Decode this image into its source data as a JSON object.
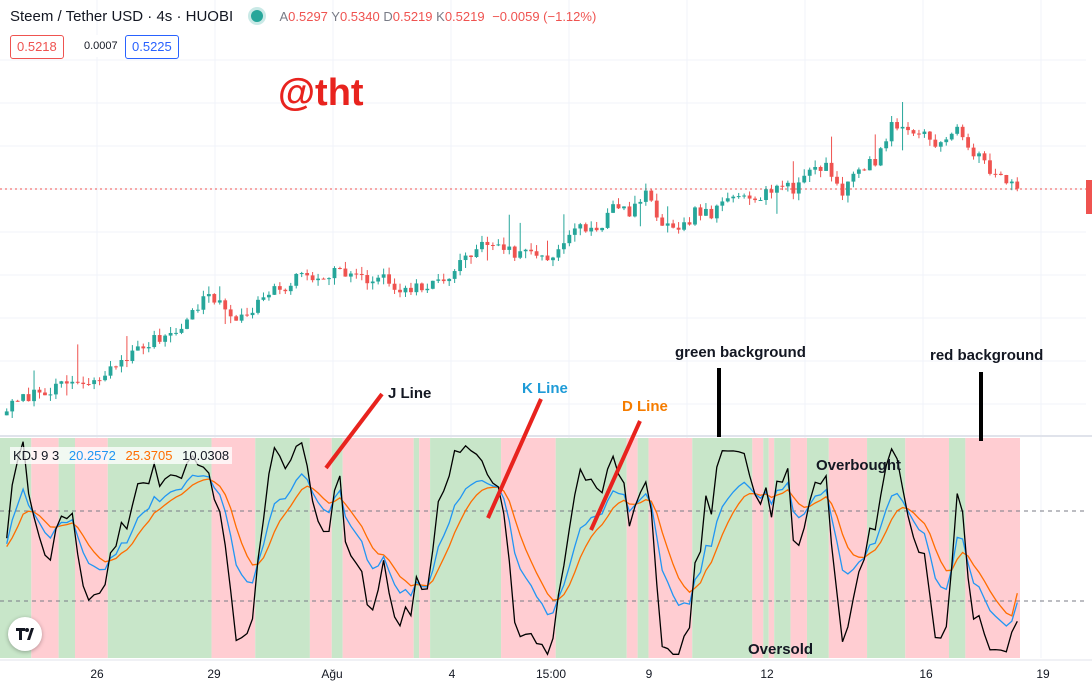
{
  "header": {
    "symbol": "Steem / Tether USD · 4s · HUOBI",
    "o_label": "A",
    "o_val": "0.5297",
    "h_label": "Y",
    "h_val": "0.5340",
    "l_label": "D",
    "l_val": "0.5219",
    "c_label": "K",
    "c_val": "0.5219",
    "change": "−0.0059 (−1.12%)"
  },
  "trade": {
    "sell": "0.5218",
    "spread": "0.0007",
    "buy": "0.5225"
  },
  "watermark": "@tht",
  "kdj_legend": {
    "name": "KDJ 9 3",
    "k": "20.2572",
    "d": "25.3705",
    "j": "10.0308"
  },
  "annotations": {
    "j_line": "J Line",
    "k_line": "K Line",
    "d_line": "D Line",
    "green_bg": "green background",
    "red_bg": "red background",
    "overbought": "Overbought",
    "oversold": "Oversold"
  },
  "colors": {
    "up": "#26a69a",
    "down": "#ef5350",
    "k": "#2196f3",
    "d": "#ff6d00",
    "j": "#000000",
    "bg_green": "#c8e6c9",
    "bg_red": "#ffcdd2",
    "annotation_red": "#e8231e",
    "annotation_blue": "#1e9bd7",
    "annotation_orange": "#f57c00"
  },
  "chart_data": [
    {
      "type": "candlestick",
      "title": "Steem / Tether USD · 4s · HUOBI",
      "x_ticks": [
        "26",
        "29",
        "Ağu",
        "4",
        "15:00",
        "9",
        "12",
        "16",
        "19"
      ],
      "ylim": [
        0.46,
        0.56
      ],
      "last_price": 0.5219,
      "close_path": [
        [
          0,
          0.4655
        ],
        [
          3,
          0.468
        ],
        [
          6,
          0.47
        ],
        [
          9,
          0.4705
        ],
        [
          12,
          0.4725
        ],
        [
          15,
          0.471
        ],
        [
          18,
          0.474
        ],
        [
          21,
          0.478
        ],
        [
          24,
          0.4805
        ],
        [
          27,
          0.483
        ],
        [
          30,
          0.485
        ],
        [
          33,
          0.488
        ],
        [
          36,
          0.494
        ],
        [
          39,
          0.493
        ],
        [
          42,
          0.488
        ],
        [
          45,
          0.491
        ],
        [
          48,
          0.495
        ],
        [
          51,
          0.4965
        ],
        [
          54,
          0.5
        ],
        [
          57,
          0.499
        ],
        [
          60,
          0.501
        ],
        [
          63,
          0.5
        ],
        [
          66,
          0.498
        ],
        [
          69,
          0.499
        ],
        [
          72,
          0.4945
        ],
        [
          75,
          0.4965
        ],
        [
          78,
          0.497
        ],
        [
          81,
          0.5
        ],
        [
          84,
          0.504
        ],
        [
          87,
          0.5075
        ],
        [
          90,
          0.508
        ],
        [
          93,
          0.505
        ],
        [
          96,
          0.506
        ],
        [
          99,
          0.504
        ],
        [
          102,
          0.508
        ],
        [
          105,
          0.512
        ],
        [
          108,
          0.511
        ],
        [
          111,
          0.517
        ],
        [
          114,
          0.516
        ],
        [
          117,
          0.52
        ],
        [
          120,
          0.513
        ],
        [
          123,
          0.51
        ],
        [
          126,
          0.516
        ],
        [
          129,
          0.515
        ],
        [
          132,
          0.519
        ],
        [
          135,
          0.521
        ],
        [
          138,
          0.52
        ],
        [
          141,
          0.523
        ],
        [
          144,
          0.5215
        ],
        [
          147,
          0.527
        ],
        [
          150,
          0.528
        ],
        [
          153,
          0.521
        ],
        [
          156,
          0.527
        ],
        [
          159,
          0.529
        ],
        [
          162,
          0.538
        ],
        [
          165,
          0.537
        ],
        [
          168,
          0.536
        ],
        [
          171,
          0.533
        ],
        [
          174,
          0.537
        ],
        [
          177,
          0.531
        ],
        [
          180,
          0.527
        ],
        [
          183,
          0.5245
        ],
        [
          186,
          0.5219
        ]
      ]
    },
    {
      "type": "line",
      "title": "KDJ 9 3",
      "ylim": [
        -10,
        110
      ],
      "reference_lines": [
        80,
        20
      ],
      "series": [
        {
          "name": "K",
          "last": 20.2572
        },
        {
          "name": "D",
          "last": 25.3705
        },
        {
          "name": "J",
          "last": 10.0308
        }
      ]
    }
  ]
}
